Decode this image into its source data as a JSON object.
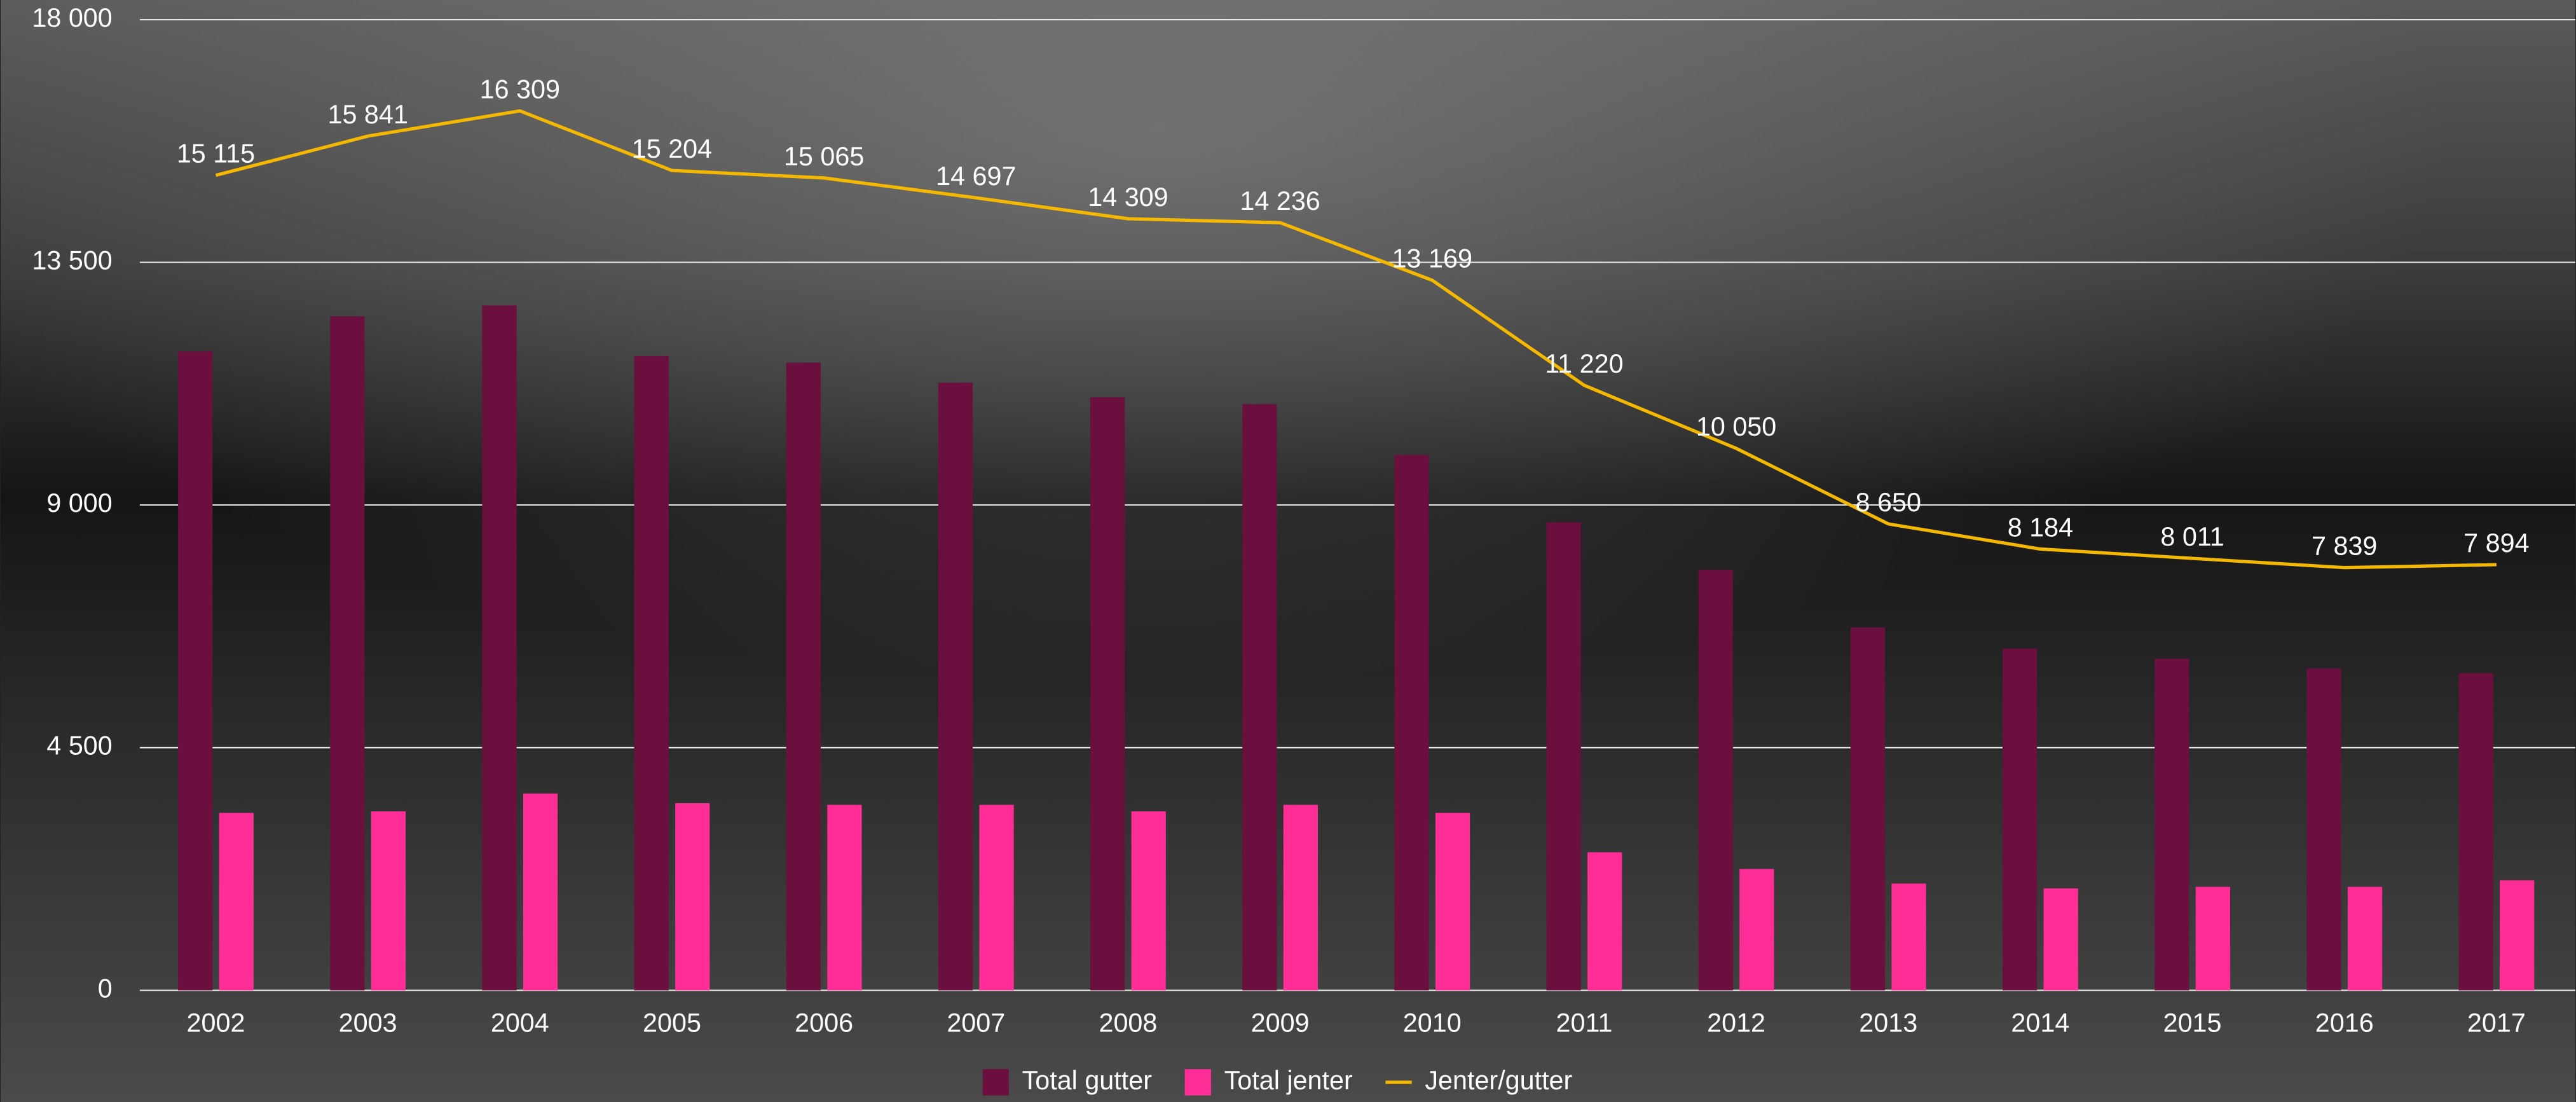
{
  "chart_data": {
    "type": "bar",
    "categories": [
      "2002",
      "2003",
      "2004",
      "2005",
      "2006",
      "2007",
      "2008",
      "2009",
      "2010",
      "2011",
      "2012",
      "2013",
      "2014",
      "2015",
      "2016",
      "2017"
    ],
    "ylim": [
      0,
      18000
    ],
    "yticks": [
      0,
      {
        "value": 4500,
        "label": "4 500"
      },
      {
        "value": 9000,
        "label": "9 000"
      },
      {
        "value": 13500,
        "label": "13 500"
      },
      {
        "value": 18000,
        "label": "18 000"
      }
    ],
    "grid": true,
    "legend": "bottom",
    "series": [
      {
        "name": "Total gutter",
        "type": "bar",
        "color": "#6b0f3e",
        "values": [
          11850,
          12500,
          12700,
          11760,
          11640,
          11270,
          11000,
          10870,
          9930,
          8680,
          7800,
          6730,
          6340,
          6150,
          5970,
          5880
        ]
      },
      {
        "name": "Total jenter",
        "type": "bar",
        "color": "#ff2d95",
        "values": [
          3290,
          3320,
          3650,
          3470,
          3440,
          3440,
          3320,
          3440,
          3290,
          2560,
          2250,
          1980,
          1890,
          1920,
          1920,
          2040
        ]
      },
      {
        "name": "Jenter/gutter",
        "type": "line",
        "color": "#f5b800",
        "values": [
          15115,
          15841,
          16309,
          15204,
          15065,
          14697,
          14309,
          14236,
          13169,
          11220,
          10050,
          8650,
          8184,
          8011,
          7839,
          7894
        ],
        "value_labels": [
          "15 115",
          "15 841",
          "16 309",
          "15 204",
          "15 065",
          "14 697",
          "14 309",
          "14 236",
          "13 169",
          "11 220",
          "10 050",
          "8 650",
          "8 184",
          "8 011",
          "7 839",
          "7 894"
        ]
      }
    ]
  }
}
